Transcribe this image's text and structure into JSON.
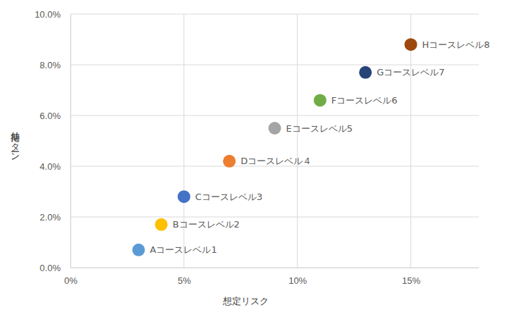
{
  "chart_data": {
    "type": "scatter",
    "x_label": "想定リスク",
    "y_label": "期待リターン",
    "xlim": [
      0,
      18
    ],
    "ylim": [
      0,
      10
    ],
    "xticks": [
      {
        "value": 0,
        "label": "0%"
      },
      {
        "value": 5,
        "label": "5%"
      },
      {
        "value": 10,
        "label": "10%"
      },
      {
        "value": 15,
        "label": "15%"
      }
    ],
    "yticks": [
      {
        "value": 0,
        "label": "0.0%"
      },
      {
        "value": 2,
        "label": "2.0%"
      },
      {
        "value": 4,
        "label": "4.0%"
      },
      {
        "value": 6,
        "label": "6.0%"
      },
      {
        "value": 8,
        "label": "8.0%"
      },
      {
        "value": 10,
        "label": "10.0%"
      }
    ],
    "grid": true,
    "marker": "circle",
    "series": [
      {
        "name": "Aコースレベル1",
        "color": "#5b9bd5",
        "x": [
          3
        ],
        "values": [
          0.7
        ]
      },
      {
        "name": "Bコースレベル2",
        "color": "#ffc000",
        "x": [
          4
        ],
        "values": [
          1.7
        ]
      },
      {
        "name": "Cコースレベル3",
        "color": "#4472c4",
        "x": [
          5
        ],
        "values": [
          2.8
        ]
      },
      {
        "name": "Dコースレベル４",
        "color": "#ed7d31",
        "x": [
          7
        ],
        "values": [
          4.2
        ]
      },
      {
        "name": "Eコースレベル5",
        "color": "#a5a5a5",
        "x": [
          9
        ],
        "values": [
          5.5
        ]
      },
      {
        "name": "Fコースレベル6",
        "color": "#70ad47",
        "x": [
          11
        ],
        "values": [
          6.6
        ]
      },
      {
        "name": "Gコースレベル7",
        "color": "#264478",
        "x": [
          13
        ],
        "values": [
          7.7
        ]
      },
      {
        "name": "Hコースレベル8",
        "color": "#9e480e",
        "x": [
          15
        ],
        "values": [
          8.8
        ]
      }
    ]
  }
}
